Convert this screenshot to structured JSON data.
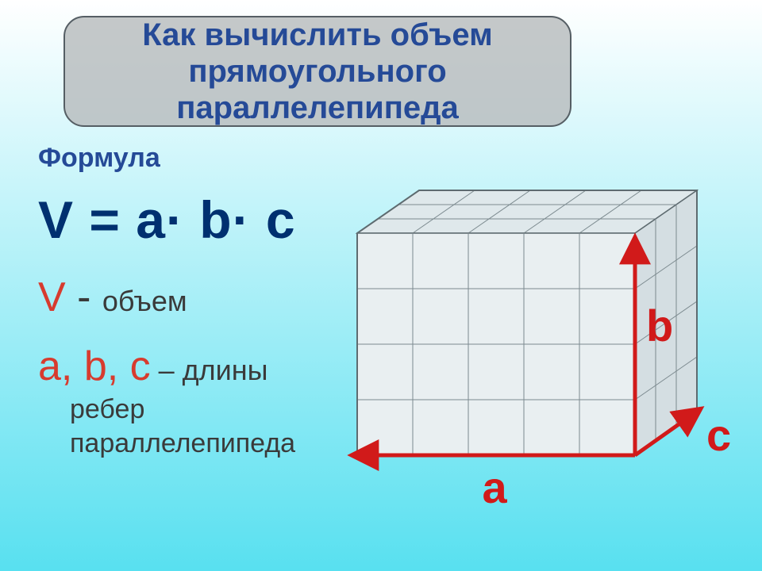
{
  "background": {
    "gradient_top": "#ffffff",
    "gradient_bottom": "#58e0f0"
  },
  "title": {
    "text": "Как вычислить объем прямоугольного параллелепипеда",
    "box_fill": "#b6babcCC",
    "box_stroke": "#555e64",
    "text_color": "#254a97"
  },
  "subhead": {
    "text": "Формула",
    "color": "#254a97"
  },
  "formula": {
    "text": "V = a· b· c",
    "color": "#003070"
  },
  "def_volume": {
    "var": "V",
    "dash": " - ",
    "rest": "объем",
    "var_color": "#d73b2e",
    "text_color": "#3a3a3a"
  },
  "def_edges": {
    "vars": "a, b, c",
    "dash": " – ",
    "rest_head": "длины",
    "rest_tail": "ребер параллелепипеда",
    "var_color": "#d73b2e",
    "text_color": "#3a3a3a"
  },
  "cube": {
    "units_a": 5,
    "units_b": 4,
    "units_c": 3,
    "cell": 70,
    "depth_dx": 26,
    "depth_dy": 18,
    "front_fill": "#e9eff1",
    "top_fill": "#dfe8eb",
    "side_fill": "#d4dee2",
    "grid_stroke": "#7c8a8f",
    "outline_stroke": "#5e6b70"
  },
  "axes": {
    "stroke": "#d11a1a",
    "stroke_width": 5,
    "label_a": "a",
    "label_b": "b",
    "label_c": "c",
    "label_color": "#d11a1a"
  }
}
